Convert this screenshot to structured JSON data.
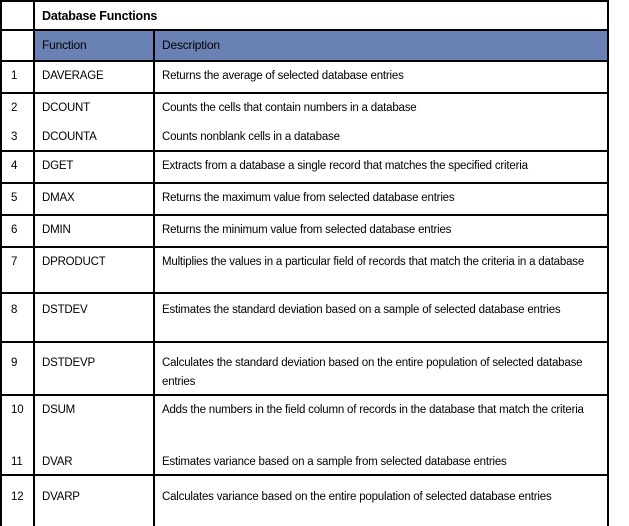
{
  "table": {
    "title": "Database Functions",
    "header": {
      "number_column": "",
      "function": "Function",
      "description": "Description"
    },
    "colors": {
      "header_bg": "#6A81B4",
      "border": "#000000",
      "text": "#000000",
      "page_bg": "#ffffff"
    },
    "rows": [
      {
        "num": "1",
        "function": "DAVERAGE",
        "description": "Returns the average of selected database entries"
      },
      {
        "num": "2",
        "function": "DCOUNT",
        "description": "Counts the cells that contain numbers in a database",
        "grouped_with_next": true
      },
      {
        "num": "3",
        "function": "DCOUNTA",
        "description": "Counts nonblank cells in a database"
      },
      {
        "num": "4",
        "function": "DGET",
        "description": "Extracts from a database a single record that matches the specified criteria"
      },
      {
        "num": "5",
        "function": "DMAX",
        "description": "Returns the maximum value from selected database entries"
      },
      {
        "num": "6",
        "function": "DMIN",
        "description": "Returns the minimum value from selected database entries"
      },
      {
        "num": "7",
        "function": "DPRODUCT",
        "description": "Multiplies the values in a particular field of records that match the criteria in a database"
      },
      {
        "num": "8",
        "function": "DSTDEV",
        "description": "Estimates the standard deviation based on a sample of selected database entries"
      },
      {
        "num": "9",
        "function": "DSTDEVP",
        "description": "Calculates the standard deviation based on the entire population of selected database entries"
      },
      {
        "num": "10",
        "function": "DSUM",
        "description": "Adds the numbers in the field column of records in the database that match the criteria",
        "grouped_with_next": true
      },
      {
        "num": "11",
        "function": "DVAR",
        "description": "Estimates variance based on a sample from selected database entries"
      },
      {
        "num": "12",
        "function": "DVARP",
        "description": "Calculates variance based on the entire population of selected database entries"
      }
    ]
  }
}
